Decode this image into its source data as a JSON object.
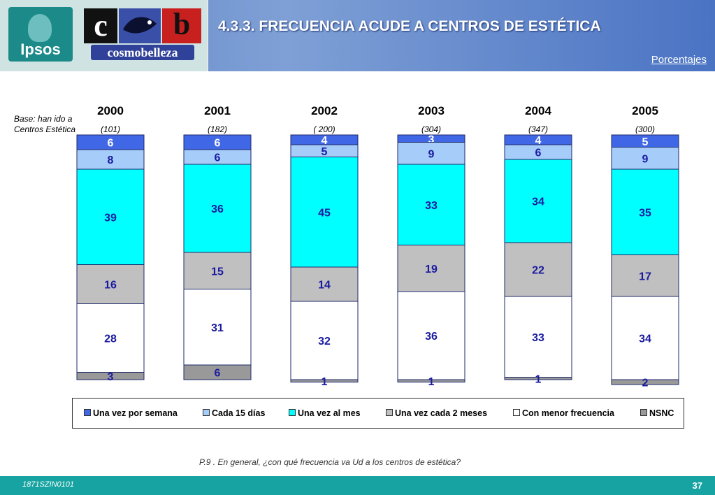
{
  "header": {
    "title": "4.3.3. FRECUENCIA ACUDE A CENTROS DE ESTÉTICA",
    "subtitle": "Porcentajes",
    "logo_left": "Ipsos",
    "logo_right_letters": [
      "c",
      "b"
    ],
    "logo_right_word": "cosmobelleza"
  },
  "base_label": "Base: han ido a Centros Estética",
  "question": "P.9 .    En general, ¿con qué frecuencia va Ud a los centros de estética?",
  "footer": {
    "code": "1871SZIN0101",
    "page": "37"
  },
  "chart_data": {
    "type": "bar",
    "stacked": true,
    "categories": [
      "2000",
      "2001",
      "2002",
      "2003",
      "2004",
      "2005"
    ],
    "bases": [
      "(101)",
      "(182)",
      "( 200)",
      "(304)",
      "(347)",
      "(300)"
    ],
    "ylim": [
      0,
      100
    ],
    "legend_position": "bottom",
    "series": [
      {
        "name": "Una vez por semana",
        "color": "#3f67e6",
        "values": [
          6,
          6,
          4,
          3,
          4,
          5
        ]
      },
      {
        "name": "Cada 15 días",
        "color": "#a6cdfa",
        "values": [
          8,
          6,
          5,
          9,
          6,
          9
        ]
      },
      {
        "name": "Una vez al mes",
        "color": "#00ffff",
        "values": [
          39,
          36,
          45,
          33,
          34,
          35
        ]
      },
      {
        "name": "Una vez cada 2 meses",
        "color": "#c0c0c0",
        "values": [
          16,
          15,
          14,
          19,
          22,
          17
        ]
      },
      {
        "name": "Con menor frecuencia",
        "color": "#ffffff",
        "values": [
          28,
          31,
          32,
          36,
          33,
          34
        ]
      },
      {
        "name": "NSNC",
        "color": "#999999",
        "values": [
          3,
          6,
          1,
          1,
          1,
          2
        ]
      }
    ]
  }
}
